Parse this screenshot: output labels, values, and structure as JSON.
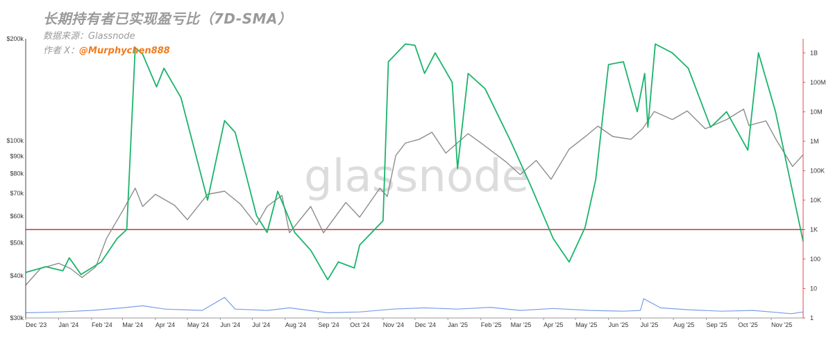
{
  "header": {
    "title": "长期持有者已实现盈亏比（7D-SMA）",
    "source_label": "数据来源：Glassnode",
    "author_prefix": "作者 X：",
    "author_handle": "@Murphychen888"
  },
  "watermark": "glassnode",
  "colors": {
    "price": "#8c8c8c",
    "ratio": "#19b46a",
    "volume": "#7b9ee8",
    "threshold": "#c8323c",
    "right_axis": "#e04848",
    "handle": "#f07c1e"
  },
  "chart_data": {
    "type": "line",
    "x_start": "2023-12-01",
    "x_end": "2025-12-01",
    "x_ticks": [
      "Dec '23",
      "Jan '24",
      "Feb '24",
      "Mar '24",
      "Apr '24",
      "May '24",
      "Jun '24",
      "Jul '24",
      "Aug '24",
      "Sep '24",
      "Oct '24",
      "Nov '24",
      "Dec '24",
      "Jan '25",
      "Feb '25",
      "Mar '25",
      "Apr '25",
      "May '25",
      "Jun '25",
      "Jul '25",
      "Aug '25",
      "Sep '25",
      "Oct '25",
      "Nov '25"
    ],
    "y_left": {
      "scale": "log",
      "range": [
        30000,
        200000
      ],
      "ticks": [
        {
          "v": 200000,
          "label": "$200k"
        },
        {
          "v": 100000,
          "label": "$100k"
        },
        {
          "v": 90000,
          "label": "$90k"
        },
        {
          "v": 80000,
          "label": "$80k"
        },
        {
          "v": 70000,
          "label": "$70k"
        },
        {
          "v": 60000,
          "label": "$60k"
        },
        {
          "v": 50000,
          "label": "$50k"
        },
        {
          "v": 40000,
          "label": "$40k"
        },
        {
          "v": 30000,
          "label": "$30k"
        }
      ]
    },
    "y_right": {
      "scale": "log",
      "range": [
        1,
        3000000000
      ],
      "ticks": [
        {
          "v": 1000000000,
          "label": "1B"
        },
        {
          "v": 100000000,
          "label": "100M"
        },
        {
          "v": 10000000,
          "label": "10M"
        },
        {
          "v": 1000000,
          "label": "1M"
        },
        {
          "v": 100000,
          "label": "100K"
        },
        {
          "v": 10000,
          "label": "10K"
        },
        {
          "v": 1000,
          "label": "1K"
        },
        {
          "v": 100,
          "label": "100"
        },
        {
          "v": 10,
          "label": "10"
        },
        {
          "v": 1,
          "label": "1"
        }
      ]
    },
    "threshold": {
      "value": 1000,
      "axis": "right"
    },
    "series": [
      {
        "key": "price",
        "axis": "left",
        "points": [
          [
            "2023-12-01",
            37500
          ],
          [
            "2023-12-15",
            42000
          ],
          [
            "2024-01-01",
            43500
          ],
          [
            "2024-01-12",
            42000
          ],
          [
            "2024-01-23",
            39500
          ],
          [
            "2024-02-05",
            42500
          ],
          [
            "2024-02-15",
            51500
          ],
          [
            "2024-03-01",
            62000
          ],
          [
            "2024-03-13",
            72500
          ],
          [
            "2024-03-20",
            64000
          ],
          [
            "2024-04-01",
            69500
          ],
          [
            "2024-04-19",
            64500
          ],
          [
            "2024-05-01",
            58500
          ],
          [
            "2024-05-20",
            69500
          ],
          [
            "2024-06-05",
            71000
          ],
          [
            "2024-06-20",
            65000
          ],
          [
            "2024-07-05",
            56500
          ],
          [
            "2024-07-15",
            64000
          ],
          [
            "2024-07-29",
            69000
          ],
          [
            "2024-08-05",
            53500
          ],
          [
            "2024-08-25",
            64000
          ],
          [
            "2024-09-06",
            53500
          ],
          [
            "2024-09-27",
            65800
          ],
          [
            "2024-10-10",
            59500
          ],
          [
            "2024-10-29",
            72500
          ],
          [
            "2024-11-05",
            68500
          ],
          [
            "2024-11-13",
            90500
          ],
          [
            "2024-11-22",
            98500
          ],
          [
            "2024-12-05",
            101000
          ],
          [
            "2024-12-17",
            106000
          ],
          [
            "2024-12-30",
            92000
          ],
          [
            "2025-01-20",
            105000
          ],
          [
            "2025-02-03",
            97500
          ],
          [
            "2025-02-25",
            86500
          ],
          [
            "2025-03-10",
            79500
          ],
          [
            "2025-03-25",
            87500
          ],
          [
            "2025-04-08",
            77000
          ],
          [
            "2025-04-25",
            94500
          ],
          [
            "2025-05-12",
            104000
          ],
          [
            "2025-05-22",
            110500
          ],
          [
            "2025-06-05",
            103000
          ],
          [
            "2025-06-22",
            101000
          ],
          [
            "2025-07-03",
            108500
          ],
          [
            "2025-07-14",
            122000
          ],
          [
            "2025-07-31",
            115500
          ],
          [
            "2025-08-14",
            122500
          ],
          [
            "2025-08-31",
            108500
          ],
          [
            "2025-09-20",
            115500
          ],
          [
            "2025-10-06",
            124000
          ],
          [
            "2025-10-11",
            111000
          ],
          [
            "2025-10-27",
            114500
          ],
          [
            "2025-11-05",
            101500
          ],
          [
            "2025-11-21",
            84000
          ],
          [
            "2025-12-01",
            91000
          ]
        ]
      },
      {
        "key": "ratio",
        "axis": "right",
        "points": [
          [
            "2023-12-01",
            35
          ],
          [
            "2023-12-20",
            55
          ],
          [
            "2024-01-05",
            40
          ],
          [
            "2024-01-11",
            110
          ],
          [
            "2024-01-22",
            30
          ],
          [
            "2024-02-10",
            80
          ],
          [
            "2024-02-25",
            500
          ],
          [
            "2024-03-05",
            1000
          ],
          [
            "2024-03-13",
            1500000000
          ],
          [
            "2024-03-20",
            900000000
          ],
          [
            "2024-04-02",
            70000000
          ],
          [
            "2024-04-09",
            300000000
          ],
          [
            "2024-04-25",
            30000000
          ],
          [
            "2024-05-20",
            10000
          ],
          [
            "2024-06-05",
            5000000
          ],
          [
            "2024-06-15",
            2000000
          ],
          [
            "2024-07-05",
            3000
          ],
          [
            "2024-07-15",
            800
          ],
          [
            "2024-07-25",
            20000
          ],
          [
            "2024-08-10",
            800
          ],
          [
            "2024-08-25",
            200
          ],
          [
            "2024-09-10",
            20
          ],
          [
            "2024-09-20",
            80
          ],
          [
            "2024-10-05",
            50
          ],
          [
            "2024-10-10",
            300
          ],
          [
            "2024-11-01",
            2000
          ],
          [
            "2024-11-06",
            500000000
          ],
          [
            "2024-11-22",
            2000000000
          ],
          [
            "2024-12-01",
            1800000000
          ],
          [
            "2024-12-10",
            200000000
          ],
          [
            "2024-12-20",
            1000000000
          ],
          [
            "2025-01-05",
            100000000
          ],
          [
            "2025-01-10",
            120000
          ],
          [
            "2025-01-20",
            200000000
          ],
          [
            "2025-02-05",
            60000000
          ],
          [
            "2025-03-01",
            1000000
          ],
          [
            "2025-03-20",
            30000
          ],
          [
            "2025-04-10",
            500
          ],
          [
            "2025-04-25",
            80
          ],
          [
            "2025-05-10",
            1200
          ],
          [
            "2025-05-20",
            50000
          ],
          [
            "2025-06-01",
            400000000
          ],
          [
            "2025-06-15",
            500000000
          ],
          [
            "2025-06-28",
            10000000
          ],
          [
            "2025-07-05",
            200000000
          ],
          [
            "2025-07-08",
            3000000
          ],
          [
            "2025-07-15",
            2000000000
          ],
          [
            "2025-07-31",
            1000000000
          ],
          [
            "2025-08-15",
            300000000
          ],
          [
            "2025-09-05",
            3000000
          ],
          [
            "2025-09-20",
            10000000
          ],
          [
            "2025-10-10",
            500000
          ],
          [
            "2025-10-20",
            1000000000
          ],
          [
            "2025-11-05",
            10000000
          ],
          [
            "2025-12-01",
            400
          ]
        ]
      },
      {
        "key": "volume",
        "axis": "right",
        "points": [
          [
            "2023-12-01",
            1.5
          ],
          [
            "2024-01-01",
            1.6
          ],
          [
            "2024-02-01",
            1.8
          ],
          [
            "2024-03-01",
            2.2
          ],
          [
            "2024-03-20",
            2.6
          ],
          [
            "2024-04-10",
            2.0
          ],
          [
            "2024-05-15",
            1.8
          ],
          [
            "2024-06-05",
            5.0
          ],
          [
            "2024-06-15",
            2.0
          ],
          [
            "2024-07-15",
            1.8
          ],
          [
            "2024-08-05",
            2.2
          ],
          [
            "2024-09-10",
            1.5
          ],
          [
            "2024-10-10",
            1.6
          ],
          [
            "2024-11-10",
            2.0
          ],
          [
            "2024-12-10",
            2.2
          ],
          [
            "2025-01-10",
            2.0
          ],
          [
            "2025-02-10",
            2.3
          ],
          [
            "2025-03-10",
            1.8
          ],
          [
            "2025-04-10",
            2.1
          ],
          [
            "2025-05-15",
            1.8
          ],
          [
            "2025-06-15",
            1.7
          ],
          [
            "2025-07-01",
            1.8
          ],
          [
            "2025-07-04",
            4.5
          ],
          [
            "2025-07-20",
            2.2
          ],
          [
            "2025-08-15",
            1.9
          ],
          [
            "2025-09-15",
            1.7
          ],
          [
            "2025-10-15",
            1.8
          ],
          [
            "2025-11-20",
            1.4
          ],
          [
            "2025-12-01",
            1.6
          ]
        ]
      }
    ]
  }
}
